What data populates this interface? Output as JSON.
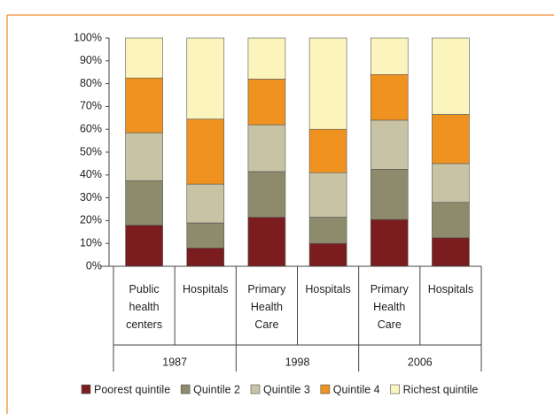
{
  "chart_data": {
    "type": "stacked_bar",
    "categories": [
      "Public health centers",
      "Hospitals",
      "Primary Health Care",
      "Hospitals",
      "Primary Health Care",
      "Hospitals"
    ],
    "group_labels": [
      "1987",
      "1998",
      "2006"
    ],
    "series": [
      {
        "name": "Poorest quintile",
        "color": "#7b1d1f",
        "values": [
          18,
          8,
          21.5,
          10,
          20.5,
          12.5
        ]
      },
      {
        "name": "Quintile 2",
        "color": "#8d8b6c",
        "values": [
          19.5,
          11,
          20,
          11.5,
          22,
          15.5
        ]
      },
      {
        "name": "Quintile 3",
        "color": "#c7c3a4",
        "values": [
          21,
          17,
          20.5,
          19.5,
          21.5,
          17
        ]
      },
      {
        "name": "Quintile 4",
        "color": "#f0921f",
        "values": [
          24,
          28.5,
          20,
          19,
          20,
          21.5
        ]
      },
      {
        "name": "Richest quintile",
        "color": "#fbf5bd",
        "values": [
          17.5,
          35.5,
          18,
          40,
          16,
          33.5
        ]
      }
    ],
    "ylim": [
      0,
      100
    ],
    "yticks": [
      {
        "value": 0,
        "label": "0%"
      },
      {
        "value": 10,
        "label": "10%"
      },
      {
        "value": 20,
        "label": "20%"
      },
      {
        "value": 30,
        "label": "30%"
      },
      {
        "value": 40,
        "label": "40%"
      },
      {
        "value": 50,
        "label": "50%"
      },
      {
        "value": 60,
        "label": "60%"
      },
      {
        "value": 70,
        "label": "70%"
      },
      {
        "value": 80,
        "label": "80%"
      },
      {
        "value": 90,
        "label": "90%"
      },
      {
        "value": 100,
        "label": "100%"
      }
    ]
  }
}
